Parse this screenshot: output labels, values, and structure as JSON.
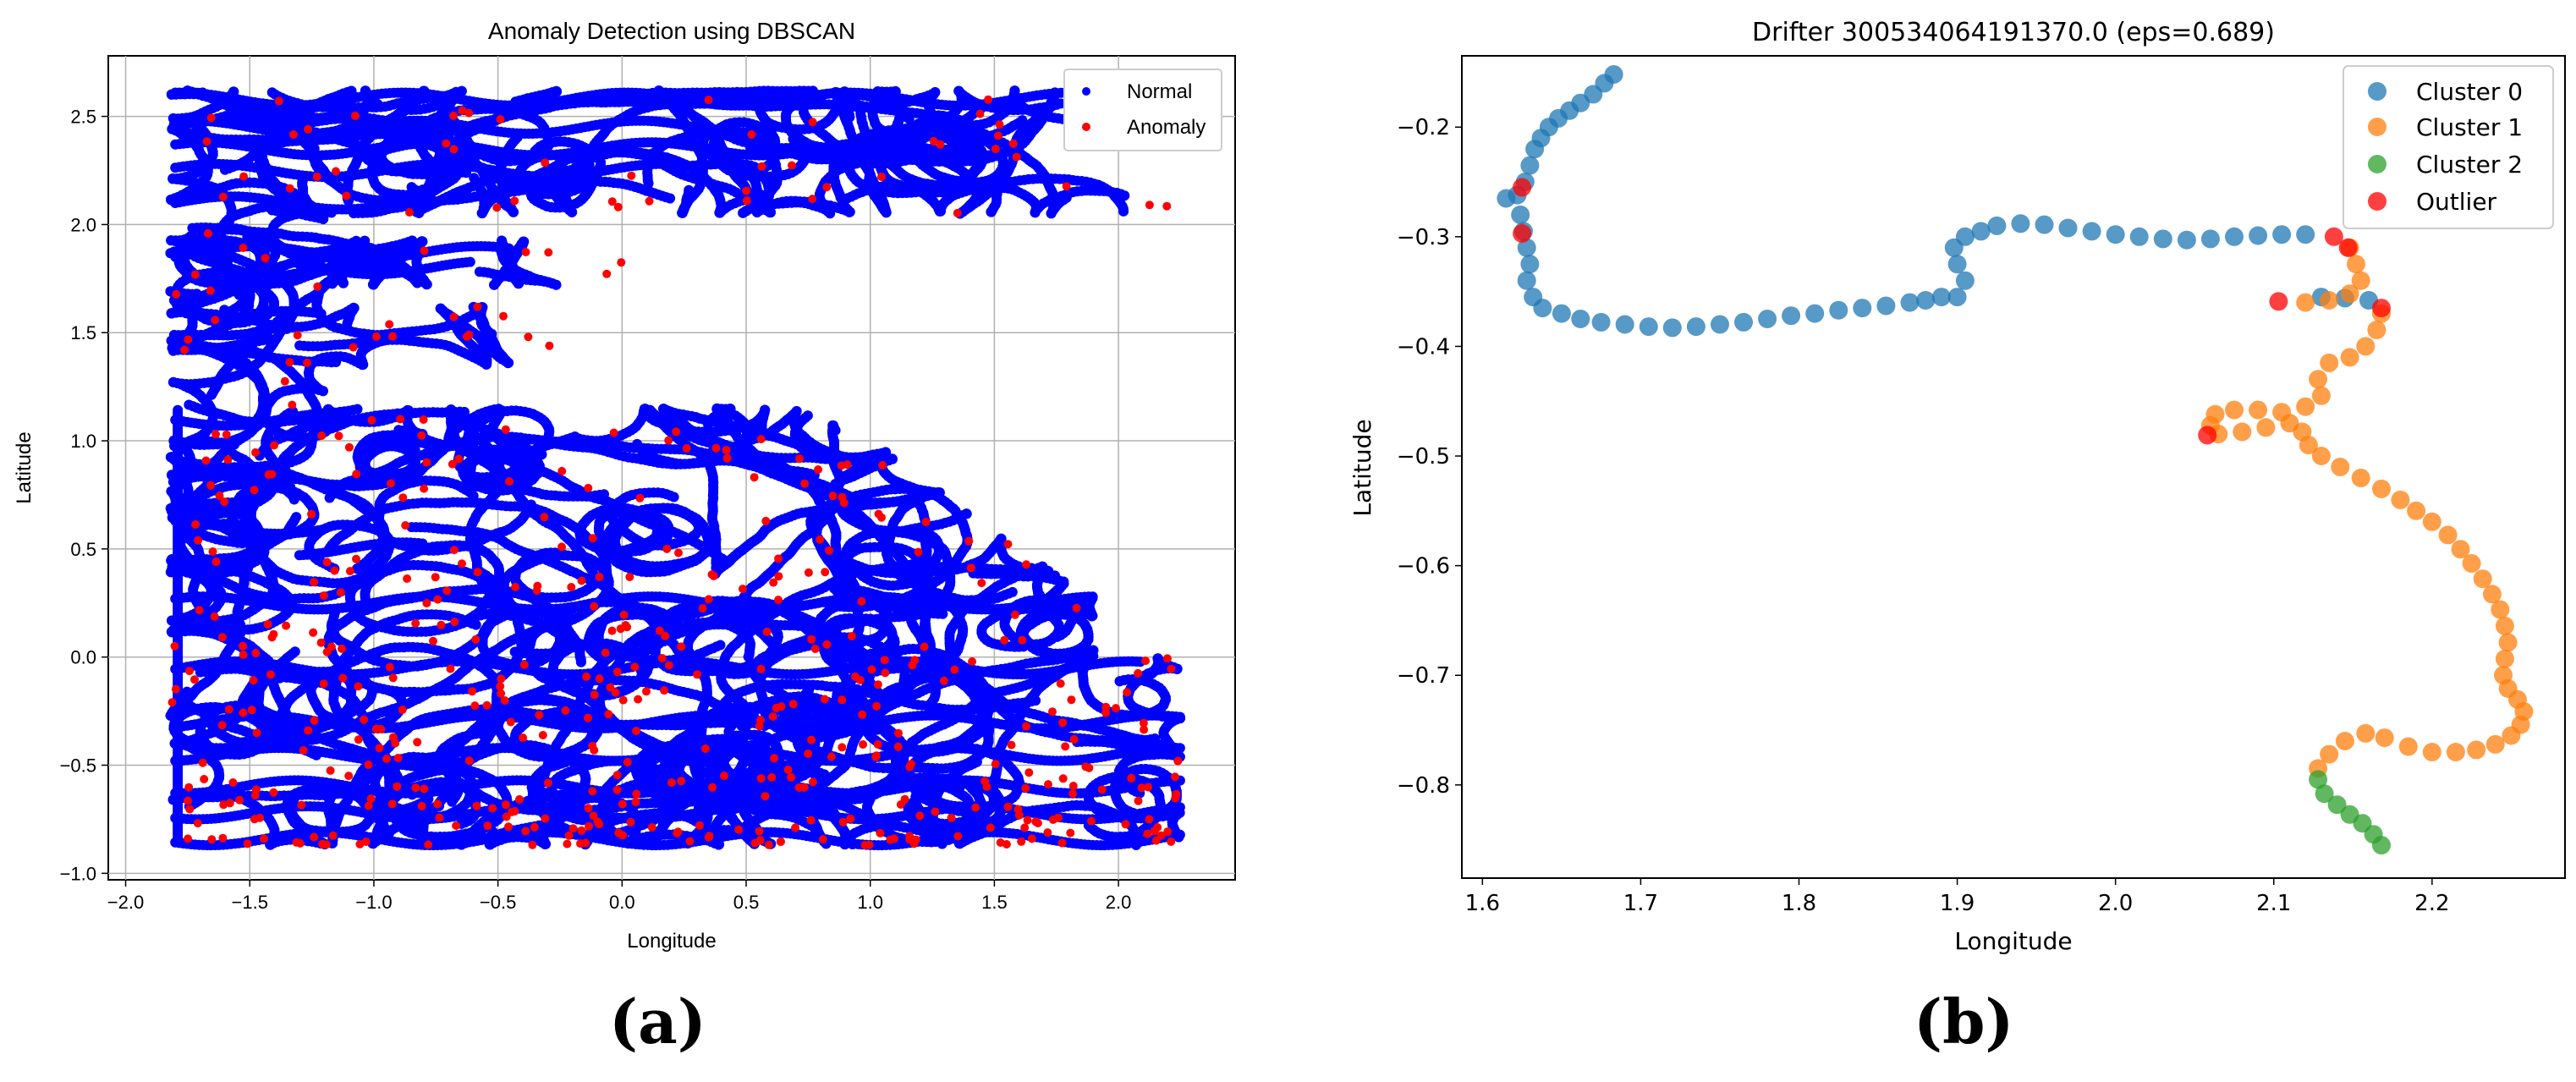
{
  "panel_labels": [
    "(a)",
    "(b)"
  ],
  "colors": {
    "normal": "#0000ff",
    "anomaly": "#ff0000",
    "cluster0": "#1f77b4",
    "cluster1": "#ff7f0e",
    "cluster2": "#2ca02c",
    "outlier": "#ff0000",
    "grid": "#b0b0b0"
  },
  "chart_data": [
    {
      "type": "scatter",
      "title": "Anomaly Detection using DBSCAN",
      "xlabel": "Longitude",
      "ylabel": "Latitude",
      "xlim": [
        -2.07,
        2.47
      ],
      "ylim": [
        -1.03,
        2.78
      ],
      "xticks": [
        -2.0,
        -1.5,
        -1.0,
        -0.5,
        0.0,
        0.5,
        1.0,
        1.5,
        2.0
      ],
      "yticks": [
        -1.0,
        -0.5,
        0.0,
        0.5,
        1.0,
        1.5,
        2.0,
        2.5
      ],
      "grid": true,
      "legend": "top-right",
      "series": [
        {
          "name": "Normal",
          "color": "#0000ff",
          "description": "dense blue point cloud of drifter trajectories"
        },
        {
          "name": "Anomaly",
          "color": "#ff0000",
          "description": "red points scattered within the cloud"
        }
      ]
    },
    {
      "type": "scatter",
      "title": "Drifter 300534064191370.0 (eps=0.689)",
      "xlabel": "Longitude",
      "ylabel": "Latitude",
      "xlim": [
        1.587,
        2.284
      ],
      "ylim": [
        -0.885,
        -0.135
      ],
      "xticks": [
        1.6,
        1.7,
        1.8,
        1.9,
        2.0,
        2.1,
        2.2
      ],
      "yticks": [
        -0.8,
        -0.7,
        -0.6,
        -0.5,
        -0.4,
        -0.3,
        -0.2
      ],
      "grid": false,
      "legend": "top-right",
      "series": [
        {
          "name": "Cluster 0",
          "color": "#1f77b4",
          "points": [
            [
              1.683,
              -0.152
            ],
            [
              1.677,
              -0.16
            ],
            [
              1.67,
              -0.17
            ],
            [
              1.662,
              -0.178
            ],
            [
              1.655,
              -0.185
            ],
            [
              1.648,
              -0.192
            ],
            [
              1.642,
              -0.2
            ],
            [
              1.637,
              -0.21
            ],
            [
              1.633,
              -0.22
            ],
            [
              1.63,
              -0.235
            ],
            [
              1.627,
              -0.25
            ],
            [
              1.622,
              -0.262
            ],
            [
              1.615,
              -0.265
            ],
            [
              1.624,
              -0.28
            ],
            [
              1.626,
              -0.295
            ],
            [
              1.628,
              -0.31
            ],
            [
              1.63,
              -0.325
            ],
            [
              1.628,
              -0.34
            ],
            [
              1.632,
              -0.355
            ],
            [
              1.638,
              -0.365
            ],
            [
              1.65,
              -0.37
            ],
            [
              1.662,
              -0.375
            ],
            [
              1.675,
              -0.378
            ],
            [
              1.69,
              -0.38
            ],
            [
              1.705,
              -0.382
            ],
            [
              1.72,
              -0.383
            ],
            [
              1.735,
              -0.382
            ],
            [
              1.75,
              -0.38
            ],
            [
              1.765,
              -0.378
            ],
            [
              1.78,
              -0.375
            ],
            [
              1.795,
              -0.372
            ],
            [
              1.81,
              -0.37
            ],
            [
              1.825,
              -0.367
            ],
            [
              1.84,
              -0.365
            ],
            [
              1.855,
              -0.363
            ],
            [
              1.87,
              -0.36
            ],
            [
              1.88,
              -0.358
            ],
            [
              1.89,
              -0.355
            ],
            [
              1.9,
              -0.355
            ],
            [
              1.905,
              -0.34
            ],
            [
              1.9,
              -0.325
            ],
            [
              1.898,
              -0.31
            ],
            [
              1.905,
              -0.3
            ],
            [
              1.915,
              -0.295
            ],
            [
              1.925,
              -0.29
            ],
            [
              1.94,
              -0.288
            ],
            [
              1.955,
              -0.289
            ],
            [
              1.97,
              -0.292
            ],
            [
              1.985,
              -0.295
            ],
            [
              2.0,
              -0.298
            ],
            [
              2.015,
              -0.3
            ],
            [
              2.03,
              -0.302
            ],
            [
              2.045,
              -0.303
            ],
            [
              2.06,
              -0.302
            ],
            [
              2.075,
              -0.3
            ],
            [
              2.09,
              -0.299
            ],
            [
              2.105,
              -0.298
            ],
            [
              2.12,
              -0.298
            ],
            [
              2.13,
              -0.355
            ],
            [
              2.145,
              -0.356
            ],
            [
              2.16,
              -0.358
            ]
          ]
        },
        {
          "name": "Cluster 1",
          "color": "#ff7f0e",
          "points": [
            [
              2.148,
              -0.31
            ],
            [
              2.152,
              -0.325
            ],
            [
              2.155,
              -0.34
            ],
            [
              2.148,
              -0.352
            ],
            [
              2.135,
              -0.358
            ],
            [
              2.12,
              -0.36
            ],
            [
              2.168,
              -0.37
            ],
            [
              2.165,
              -0.385
            ],
            [
              2.158,
              -0.4
            ],
            [
              2.148,
              -0.41
            ],
            [
              2.135,
              -0.415
            ],
            [
              2.128,
              -0.43
            ],
            [
              2.13,
              -0.445
            ],
            [
              2.12,
              -0.455
            ],
            [
              2.105,
              -0.46
            ],
            [
              2.09,
              -0.458
            ],
            [
              2.075,
              -0.458
            ],
            [
              2.063,
              -0.462
            ],
            [
              2.06,
              -0.472
            ],
            [
              2.065,
              -0.48
            ],
            [
              2.08,
              -0.478
            ],
            [
              2.095,
              -0.474
            ],
            [
              2.11,
              -0.47
            ],
            [
              2.118,
              -0.478
            ],
            [
              2.122,
              -0.49
            ],
            [
              2.13,
              -0.5
            ],
            [
              2.142,
              -0.51
            ],
            [
              2.155,
              -0.52
            ],
            [
              2.168,
              -0.53
            ],
            [
              2.18,
              -0.54
            ],
            [
              2.19,
              -0.55
            ],
            [
              2.2,
              -0.56
            ],
            [
              2.21,
              -0.572
            ],
            [
              2.218,
              -0.585
            ],
            [
              2.225,
              -0.598
            ],
            [
              2.232,
              -0.612
            ],
            [
              2.238,
              -0.626
            ],
            [
              2.243,
              -0.64
            ],
            [
              2.246,
              -0.655
            ],
            [
              2.248,
              -0.67
            ],
            [
              2.246,
              -0.685
            ],
            [
              2.245,
              -0.7
            ],
            [
              2.248,
              -0.712
            ],
            [
              2.254,
              -0.722
            ],
            [
              2.258,
              -0.733
            ],
            [
              2.256,
              -0.745
            ],
            [
              2.25,
              -0.755
            ],
            [
              2.24,
              -0.763
            ],
            [
              2.228,
              -0.768
            ],
            [
              2.215,
              -0.77
            ],
            [
              2.2,
              -0.77
            ],
            [
              2.185,
              -0.765
            ],
            [
              2.17,
              -0.757
            ],
            [
              2.158,
              -0.753
            ],
            [
              2.145,
              -0.76
            ],
            [
              2.135,
              -0.772
            ],
            [
              2.128,
              -0.785
            ]
          ]
        },
        {
          "name": "Cluster 2",
          "color": "#2ca02c",
          "points": [
            [
              2.128,
              -0.795
            ],
            [
              2.132,
              -0.808
            ],
            [
              2.14,
              -0.818
            ],
            [
              2.148,
              -0.827
            ],
            [
              2.156,
              -0.835
            ],
            [
              2.163,
              -0.845
            ],
            [
              2.168,
              -0.855
            ]
          ]
        },
        {
          "name": "Outlier",
          "color": "#ff0000",
          "points": [
            [
              1.625,
              -0.255
            ],
            [
              1.625,
              -0.297
            ],
            [
              2.058,
              -0.481
            ],
            [
              2.103,
              -0.359
            ],
            [
              2.138,
              -0.3
            ],
            [
              2.147,
              -0.31
            ],
            [
              2.168,
              -0.365
            ]
          ]
        }
      ]
    }
  ]
}
